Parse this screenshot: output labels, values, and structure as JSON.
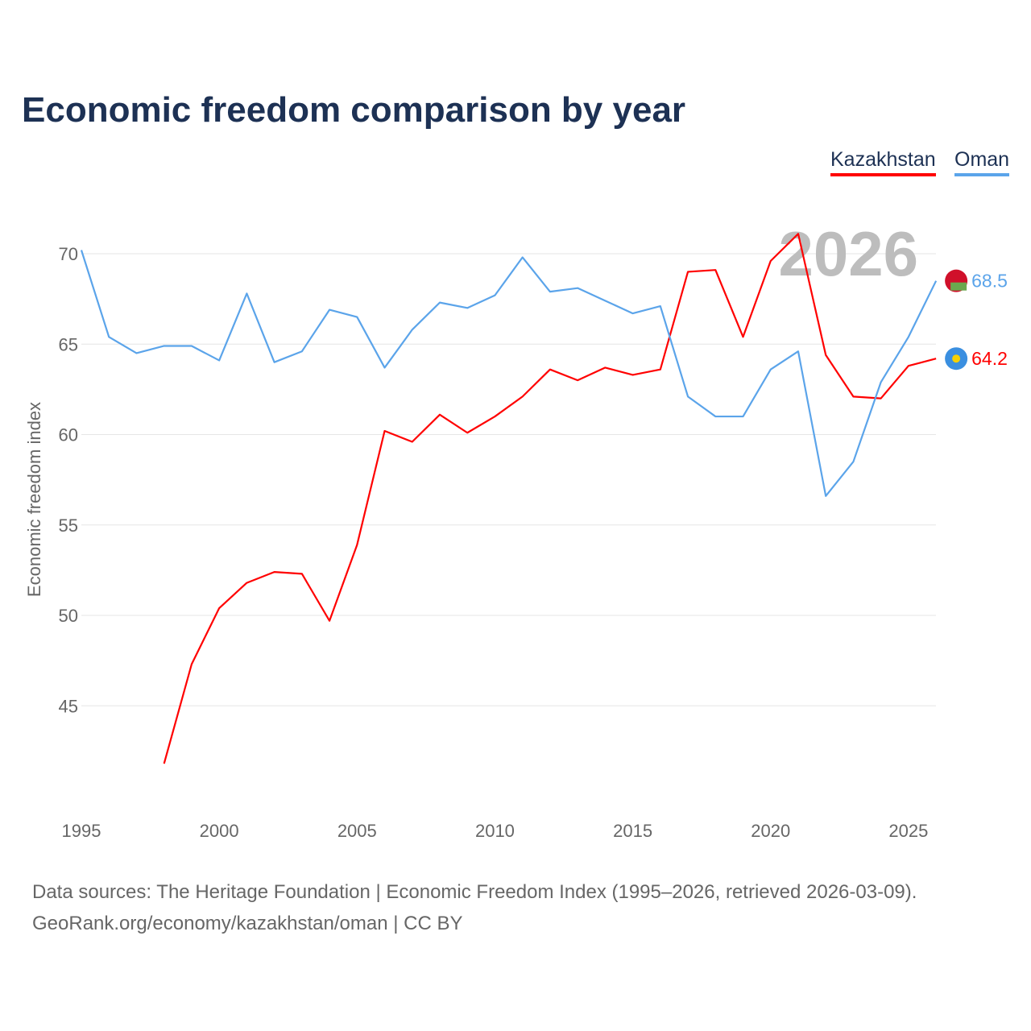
{
  "chart_data": {
    "type": "line",
    "title": "Economic freedom comparison by year",
    "ylabel": "Economic freedom index",
    "xlabel": "",
    "xlim": [
      1995,
      2026
    ],
    "ylim": [
      40,
      72
    ],
    "yticks": [
      45,
      50,
      55,
      60,
      65,
      70
    ],
    "xticks": [
      1995,
      2000,
      2005,
      2010,
      2015,
      2020,
      2025
    ],
    "grid": true,
    "legend_placement": "top-right",
    "year_watermark": "2026",
    "series": [
      {
        "name": "Kazakhstan",
        "color": "#ff0000",
        "end_label": "64.2",
        "x": [
          1998,
          1999,
          2000,
          2001,
          2002,
          2003,
          2004,
          2005,
          2006,
          2007,
          2008,
          2009,
          2010,
          2011,
          2012,
          2013,
          2014,
          2015,
          2016,
          2017,
          2018,
          2019,
          2020,
          2021,
          2022,
          2023,
          2024,
          2025,
          2026
        ],
        "values": [
          41.8,
          47.3,
          50.4,
          51.8,
          52.4,
          52.3,
          49.7,
          53.9,
          60.2,
          59.6,
          61.1,
          60.1,
          61.0,
          62.1,
          63.6,
          63.0,
          63.7,
          63.3,
          63.6,
          69.0,
          69.1,
          65.4,
          69.6,
          71.1,
          64.4,
          62.1,
          62.0,
          63.8,
          64.2
        ]
      },
      {
        "name": "Oman",
        "color": "#5ba4ea",
        "end_label": "68.5",
        "x": [
          1995,
          1996,
          1997,
          1998,
          1999,
          2000,
          2001,
          2002,
          2003,
          2004,
          2005,
          2006,
          2007,
          2008,
          2009,
          2010,
          2011,
          2012,
          2013,
          2014,
          2015,
          2016,
          2017,
          2018,
          2019,
          2020,
          2021,
          2022,
          2023,
          2024,
          2025,
          2026
        ],
        "values": [
          70.2,
          65.4,
          64.5,
          64.9,
          64.9,
          64.1,
          67.8,
          64.0,
          64.6,
          66.9,
          66.5,
          63.7,
          65.8,
          67.3,
          67.0,
          67.7,
          69.8,
          67.9,
          68.1,
          67.4,
          66.7,
          67.1,
          62.1,
          61.0,
          61.0,
          63.6,
          64.6,
          56.6,
          58.5,
          62.9,
          65.4,
          68.5
        ]
      }
    ]
  },
  "source_lines": [
    "Data sources: The Heritage Foundation | Economic Freedom Index (1995–2026, retrieved 2026-03-09).",
    "GeoRank.org/economy/kazakhstan/oman | CC BY"
  ]
}
